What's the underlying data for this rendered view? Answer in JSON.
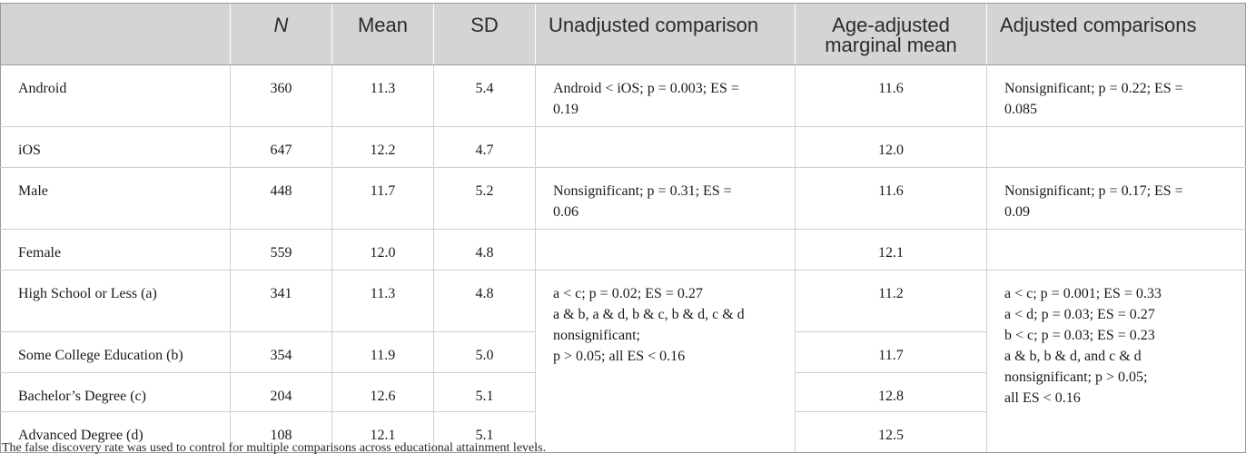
{
  "table": {
    "headers": [
      "",
      "N",
      "Mean",
      "SD",
      "Unadjusted comparison",
      "Age-adjusted marginal mean",
      "Adjusted comparisons"
    ],
    "rows": [
      {
        "label": "Android",
        "n": "360",
        "mean": "11.3",
        "sd": "5.4",
        "adj_mean": "11.6"
      },
      {
        "label": "iOS",
        "n": "647",
        "mean": "12.2",
        "sd": "4.7",
        "adj_mean": "12.0"
      },
      {
        "label": "Male",
        "n": "448",
        "mean": "11.7",
        "sd": "5.2",
        "adj_mean": "11.6"
      },
      {
        "label": "Female",
        "n": "559",
        "mean": "12.0",
        "sd": "4.8",
        "adj_mean": "12.1"
      },
      {
        "label": "High School or Less (a)",
        "n": "341",
        "mean": "11.3",
        "sd": "4.8",
        "adj_mean": "11.2"
      },
      {
        "label": "Some College Education (b)",
        "n": "354",
        "mean": "11.9",
        "sd": "5.0",
        "adj_mean": "11.7"
      },
      {
        "label": "Bachelor’s Degree (c)",
        "n": "204",
        "mean": "12.6",
        "sd": "5.1",
        "adj_mean": "12.8"
      },
      {
        "label": "Advanced Degree (d)",
        "n": "108",
        "mean": "12.1",
        "sd": "5.1",
        "adj_mean": "12.5"
      }
    ],
    "comparisons": {
      "os_unadjusted": "Android < iOS; p = 0.003; ES =\n0.19",
      "os_adjusted": "Nonsignificant; p = 0.22; ES =\n0.085",
      "sex_unadjusted": "Nonsignificant; p = 0.31; ES =\n0.06",
      "sex_adjusted": "Nonsignificant; p = 0.17; ES =\n0.09",
      "edu_unadjusted": "a < c; p = 0.02; ES = 0.27\na & b, a & d, b & c, b & d, c & d\nnonsignificant;\np > 0.05; all ES < 0.16",
      "edu_adjusted": "a < c; p = 0.001; ES = 0.33\na < d; p = 0.03; ES = 0.27\nb < c; p = 0.03; ES = 0.23\na & b, b & d, and c & d\nnonsignificant; p > 0.05;\nall ES < 0.16"
    }
  },
  "footnote": "The false discovery rate was used to control for multiple comparisons across educational attainment levels."
}
